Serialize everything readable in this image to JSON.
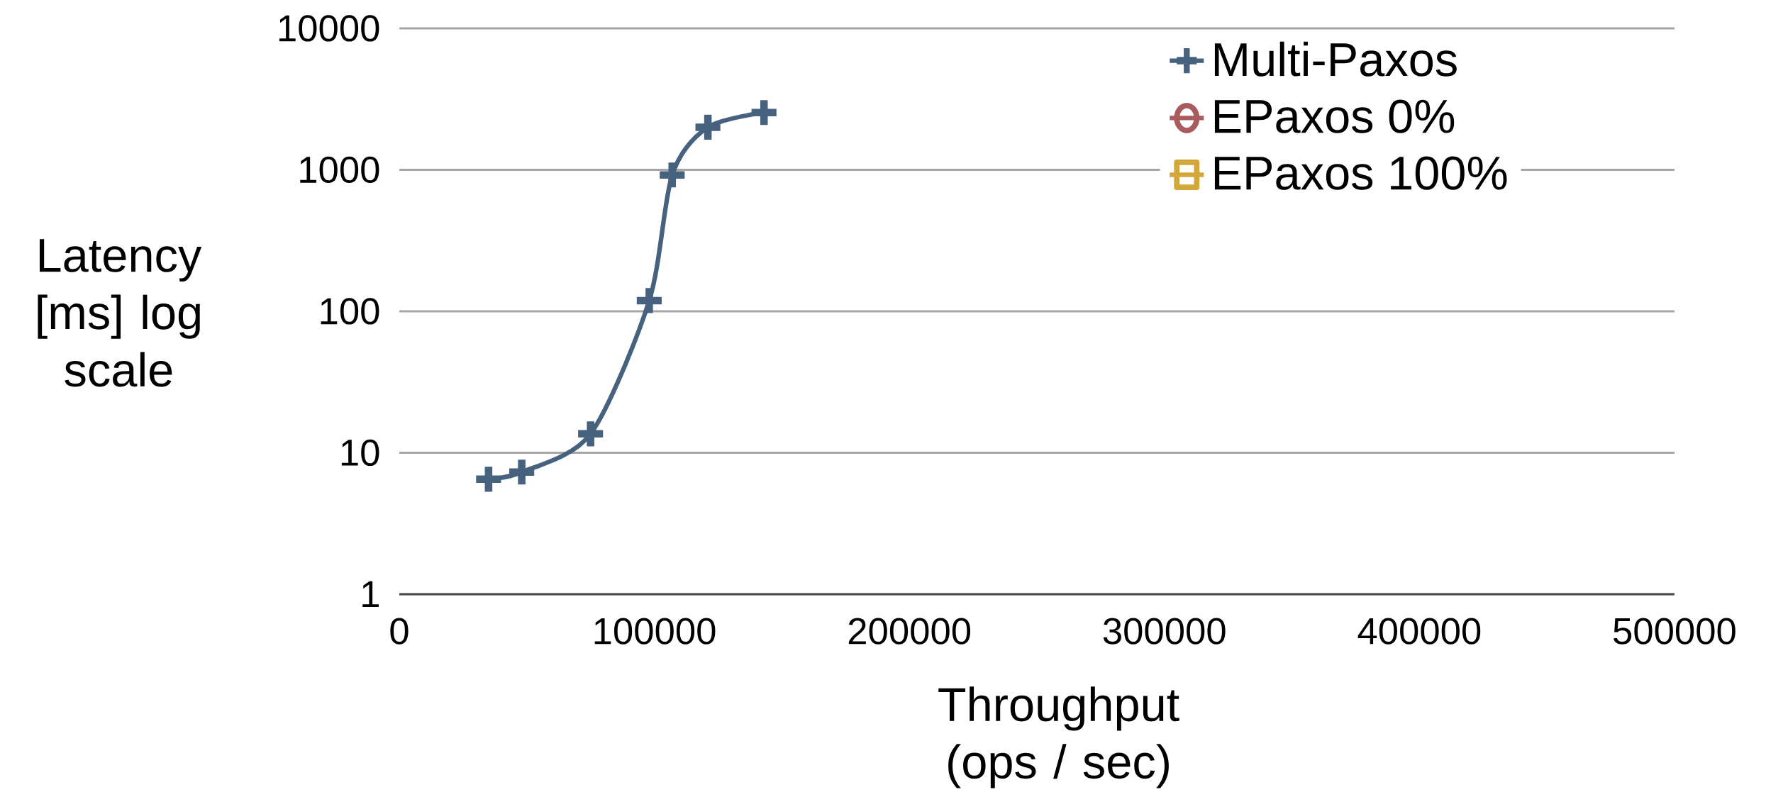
{
  "chart_data": {
    "type": "line",
    "xlabel": "Throughput (ops / sec)",
    "ylabel": "Latency [ms] log scale",
    "log": "y",
    "xlim": [
      0,
      500000
    ],
    "xticks": [
      0,
      100000,
      200000,
      300000,
      400000,
      500000
    ],
    "ylim": [
      1,
      10000
    ],
    "yticks": [
      1,
      10,
      100,
      1000,
      10000
    ],
    "grid": "y",
    "legend": "top right",
    "series": [
      {
        "name": "Multi-Paxos",
        "color": "#46627f",
        "marker": "cross",
        "x": [
          35000,
          48000,
          75000,
          98000,
          107000,
          121000,
          143000
        ],
        "values": [
          6.5,
          7.3,
          13.6,
          119,
          920,
          2000,
          2540
        ]
      },
      {
        "name": "EPaxos 0%",
        "color": "#a85c5e",
        "marker": "circle"
      },
      {
        "name": "EPaxos 100%",
        "color": "#d4a73a",
        "marker": "square"
      }
    ]
  }
}
